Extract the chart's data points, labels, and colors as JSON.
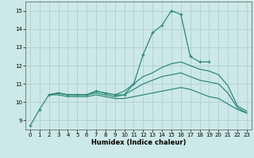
{
  "xlabel": "Humidex (Indice chaleur)",
  "xlim": [
    -0.5,
    23.5
  ],
  "ylim": [
    8.5,
    15.5
  ],
  "yticks": [
    9,
    10,
    11,
    12,
    13,
    14,
    15
  ],
  "xticks": [
    0,
    1,
    2,
    3,
    4,
    5,
    6,
    7,
    8,
    9,
    10,
    11,
    12,
    13,
    14,
    15,
    16,
    17,
    18,
    19,
    20,
    21,
    22,
    23
  ],
  "background_color": "#cce8e8",
  "line_color": "#2e8b7a",
  "grid_color": "#b0d0d0",
  "lines": [
    {
      "x": [
        0,
        1,
        2,
        3,
        4,
        5,
        6,
        7,
        8,
        9,
        10,
        11,
        12,
        13,
        14,
        15,
        16,
        17,
        18,
        19
      ],
      "y": [
        8.7,
        9.6,
        10.4,
        10.5,
        10.4,
        10.4,
        10.4,
        10.6,
        10.5,
        10.4,
        10.4,
        11.0,
        12.6,
        13.8,
        14.2,
        15.0,
        14.8,
        12.5,
        12.2,
        12.2
      ],
      "has_markers": true
    },
    {
      "x": [
        2,
        3,
        4,
        5,
        6,
        7,
        8,
        9,
        10,
        11,
        12,
        13,
        14,
        15,
        16,
        17,
        18,
        19,
        20,
        21,
        22,
        23
      ],
      "y": [
        10.4,
        10.5,
        10.4,
        10.4,
        10.4,
        10.6,
        10.5,
        10.4,
        10.6,
        11.0,
        11.4,
        11.6,
        11.9,
        12.1,
        12.2,
        12.0,
        11.8,
        11.7,
        11.5,
        10.9,
        9.8,
        9.5
      ],
      "has_markers": false
    },
    {
      "x": [
        2,
        3,
        4,
        5,
        6,
        7,
        8,
        9,
        10,
        11,
        12,
        13,
        14,
        15,
        16,
        17,
        18,
        19,
        20,
        21,
        22,
        23
      ],
      "y": [
        10.4,
        10.5,
        10.4,
        10.4,
        10.4,
        10.5,
        10.4,
        10.3,
        10.4,
        10.7,
        11.0,
        11.2,
        11.4,
        11.5,
        11.6,
        11.4,
        11.2,
        11.1,
        11.0,
        10.5,
        9.7,
        9.4
      ],
      "has_markers": false
    },
    {
      "x": [
        2,
        3,
        4,
        5,
        6,
        7,
        8,
        9,
        10,
        11,
        12,
        13,
        14,
        15,
        16,
        17,
        18,
        19,
        20,
        21,
        22,
        23
      ],
      "y": [
        10.4,
        10.4,
        10.3,
        10.3,
        10.3,
        10.4,
        10.3,
        10.2,
        10.2,
        10.3,
        10.4,
        10.5,
        10.6,
        10.7,
        10.8,
        10.7,
        10.5,
        10.3,
        10.2,
        9.9,
        9.6,
        9.4
      ],
      "has_markers": false
    }
  ]
}
